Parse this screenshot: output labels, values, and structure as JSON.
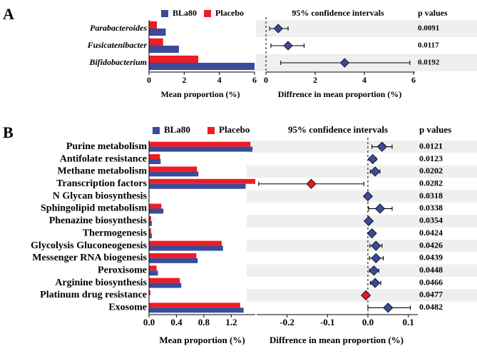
{
  "colors": {
    "bla80": "#3B4A99",
    "placebo": "#EE1C25",
    "stripe": "#EFEFEF",
    "diamond_pos": "#3B4A99",
    "diamond_neg": "#E51A22"
  },
  "chart_data": [
    {
      "panel_label": "A",
      "type": "bar",
      "legend": [
        "BLa80",
        "Placebo"
      ],
      "categories": [
        "Parabacteroides",
        "Fusicatenibacter",
        "Bifidobacterium"
      ],
      "series": [
        {
          "name": "BLa80",
          "values": [
            0.95,
            1.7,
            6.0
          ]
        },
        {
          "name": "Placebo",
          "values": [
            0.45,
            0.8,
            2.8
          ]
        }
      ],
      "xlabel": "Mean proportion (%)",
      "xlim": [
        0,
        6
      ],
      "xticks": [
        "0",
        "2",
        "4",
        "6"
      ],
      "ci": {
        "title": "95% confidence intervals",
        "xlabel": "Diffrence in mean proportion (%)",
        "xlim": [
          0,
          6
        ],
        "xticks": [
          "0",
          "2",
          "4",
          "6"
        ],
        "estimates": [
          0.5,
          0.9,
          3.2
        ],
        "lower": [
          0.15,
          0.2,
          0.6
        ],
        "upper": [
          0.9,
          1.55,
          5.85
        ]
      },
      "pvalues_title": "p values",
      "pvalues": [
        "0.0091",
        "0.0117",
        "0.0192"
      ]
    },
    {
      "panel_label": "B",
      "type": "bar",
      "legend": [
        "BLa80",
        "Placebo"
      ],
      "categories": [
        "Purine metabolism",
        "Antifolate resistance",
        "Methane metabolism",
        "Transcription factors",
        "N Glycan biosynthesis",
        "Sphingolipid metabolism",
        "Phenazine biosynthesis",
        "Thermogenesis",
        "Glycolysis  Gluconeogenesis",
        "Messenger RNA biogenesis",
        "Peroxisome",
        "Arginine biosynthesis",
        "Platinum drug resistance",
        "Exosome"
      ],
      "series": [
        {
          "name": "BLa80",
          "values": [
            1.51,
            0.17,
            0.72,
            1.41,
            0.005,
            0.21,
            0.04,
            0.04,
            1.08,
            0.71,
            0.13,
            0.47,
            0.005,
            1.38
          ]
        },
        {
          "name": "Placebo",
          "values": [
            1.48,
            0.16,
            0.7,
            1.55,
            0.005,
            0.18,
            0.03,
            0.03,
            1.06,
            0.69,
            0.11,
            0.45,
            0.02,
            1.33
          ]
        }
      ],
      "xlabel": "Mean proportion (%)",
      "xlim": [
        0,
        1.55
      ],
      "xticks": [
        "0.0",
        "0.4",
        "0.8",
        "1.2"
      ],
      "xtick_values": [
        0,
        0.4,
        0.8,
        1.2
      ],
      "ci": {
        "title": "95% confidence intervals",
        "xlabel": "Diffrence in mean proportion (%)",
        "xlim": [
          -0.275,
          0.12
        ],
        "xticks": [
          "-0.2",
          "-0.1",
          "0.0",
          "0.1"
        ],
        "xtick_values": [
          -0.2,
          -0.1,
          0.0,
          0.1
        ],
        "estimates": [
          0.035,
          0.012,
          0.018,
          -0.14,
          0.0,
          0.03,
          0.002,
          0.01,
          0.02,
          0.02,
          0.015,
          0.018,
          -0.005,
          0.05
        ],
        "lower": [
          0.01,
          0.005,
          0.006,
          -0.27,
          -0.002,
          0.002,
          -0.001,
          0.004,
          0.005,
          0.004,
          0.004,
          0.006,
          -0.008,
          0.0
        ],
        "upper": [
          0.06,
          0.02,
          0.03,
          -0.01,
          0.002,
          0.06,
          0.005,
          0.016,
          0.035,
          0.038,
          0.027,
          0.032,
          -0.001,
          0.105
        ]
      },
      "pvalues_title": "p values",
      "pvalues": [
        "0.0121",
        "0.0123",
        "0.0202",
        "0.0282",
        "0.0318",
        "0.0338",
        "0.0354",
        "0.0424",
        "0.0426",
        "0.0439",
        "0.0448",
        "0.0466",
        "0.0477",
        "0.0482"
      ]
    }
  ]
}
